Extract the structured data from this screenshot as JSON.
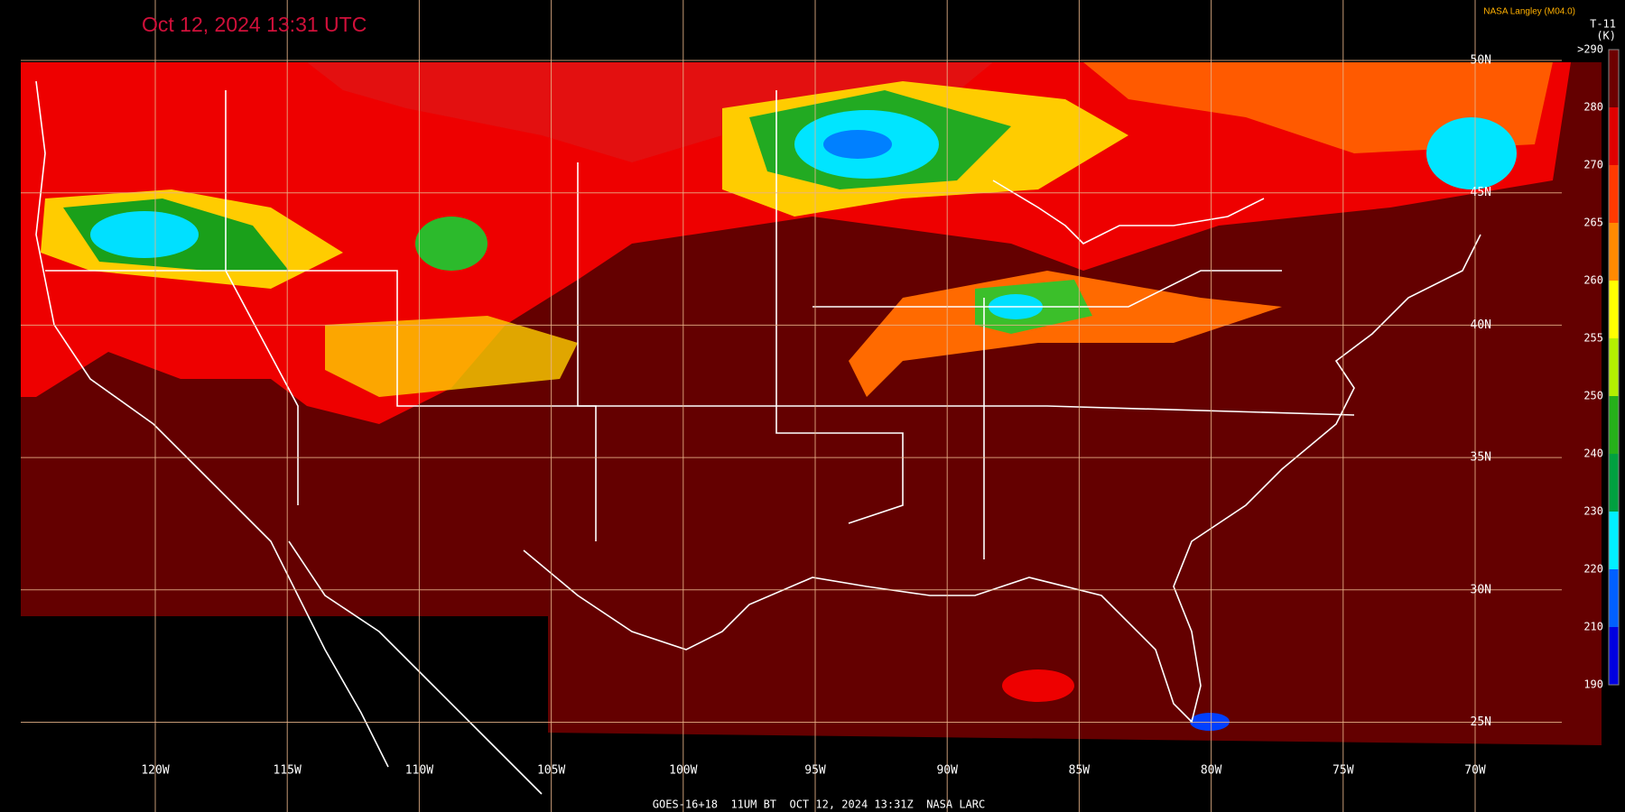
{
  "header": {
    "timestamp": "Oct 12, 2024 13:31 UTC",
    "credit": "NASA Langley (M04.0)",
    "product": "T-11",
    "unit": "(K)"
  },
  "colorbar": {
    "labels": [
      ">290",
      "280",
      "270",
      "265",
      "260",
      "255",
      "250",
      "240",
      "230",
      "220",
      "210",
      "190"
    ]
  },
  "longitude_labels": [
    "120W",
    "115W",
    "110W",
    "105W",
    "100W",
    "95W",
    "90W",
    "85W",
    "80W",
    "75W",
    "70W"
  ],
  "latitude_labels": [
    "50N",
    "45N",
    "40N",
    "35N",
    "30N",
    "25N"
  ],
  "footer": "GOES-16+18  11UM BT  OCT 12, 2024 13:31Z  NASA LARC"
}
